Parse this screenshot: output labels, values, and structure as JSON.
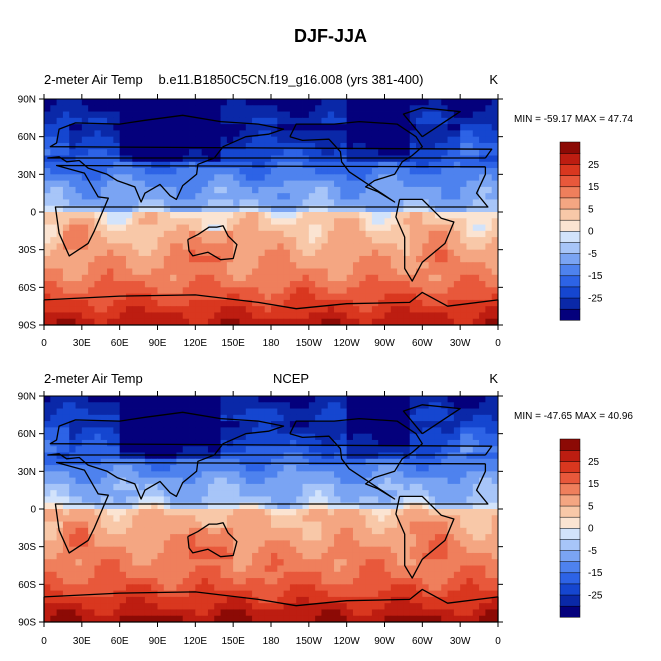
{
  "title": "DJF-JJA",
  "colors": {
    "levels": [
      "#04007c",
      "#0a28a8",
      "#1546d0",
      "#2d63e6",
      "#4e82ee",
      "#7aa4f3",
      "#a7c5f8",
      "#d2e3fb",
      "#fbe4d2",
      "#f8c8a8",
      "#f4a682",
      "#ef7f5c",
      "#e8583b",
      "#d9371f",
      "#bd1d11",
      "#8c0a05"
    ],
    "land": "#000000",
    "frame": "#000000"
  },
  "chart_data": [
    {
      "type": "heatmap",
      "left_label": "2-meter Air Temp",
      "center_label": "b.e11.B1850C5CN.f19_g16.008 (yrs 381-400)",
      "right_label": "K",
      "stats": "MIN = -59.17 MAX =  47.74",
      "x_tick_labels": [
        "0",
        "30E",
        "60E",
        "90E",
        "120E",
        "150E",
        "180",
        "150W",
        "120W",
        "90W",
        "60W",
        "30W",
        "0"
      ],
      "y_tick_labels": [
        "90N",
        "60N",
        "30N",
        "0",
        "30S",
        "60S",
        "90S"
      ],
      "colorbar_labels": [
        "25",
        "15",
        "5",
        "0",
        "-5",
        "-15",
        "-25"
      ]
    },
    {
      "type": "heatmap",
      "left_label": "2-meter Air Temp",
      "center_label": "NCEP",
      "right_label": "K",
      "stats": "MIN = -47.65 MAX =  40.96",
      "x_tick_labels": [
        "0",
        "30E",
        "60E",
        "90E",
        "120E",
        "150E",
        "180",
        "150W",
        "120W",
        "90W",
        "60W",
        "30W",
        "0"
      ],
      "y_tick_labels": [
        "90N",
        "60N",
        "30N",
        "0",
        "30S",
        "60S",
        "90S"
      ],
      "colorbar_labels": [
        "25",
        "15",
        "5",
        "0",
        "-5",
        "-15",
        "-25"
      ]
    }
  ]
}
